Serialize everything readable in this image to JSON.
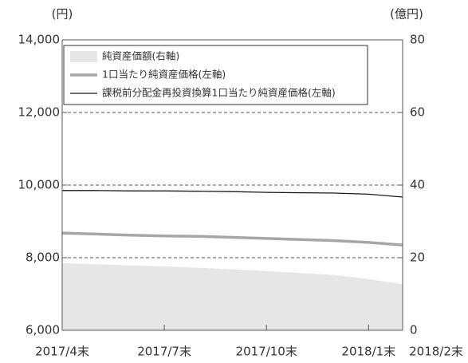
{
  "chart_data": {
    "type": "line",
    "ylabel": "(円)",
    "y2label": "(億円)",
    "categories": [
      "2017/4末",
      null,
      null,
      "2017/7末",
      null,
      null,
      "2017/10末",
      null,
      null,
      "2018/1末",
      "2018/2末"
    ],
    "series": [
      {
        "name": "純資産価額(右軸)",
        "type": "area",
        "axis": "y2",
        "color": "#e6e6e6",
        "values": [
          18.5,
          18.2,
          17.9,
          17.6,
          17.2,
          16.8,
          16.3,
          15.8,
          15.2,
          14.1,
          12.7
        ]
      },
      {
        "name": "1口当たり純資産価格(左軸)",
        "type": "line",
        "color": "#a6a6a6",
        "values": [
          8680,
          8650,
          8620,
          8600,
          8590,
          8560,
          8530,
          8500,
          8470,
          8420,
          8350
        ]
      },
      {
        "name": "課税前分配金再投資換算1口当たり純資産価格(左軸)",
        "type": "line",
        "color": "#1a1a1a",
        "values": [
          9850,
          9850,
          9840,
          9840,
          9830,
          9820,
          9800,
          9790,
          9780,
          9750,
          9670
        ]
      }
    ],
    "ylim": [
      6000,
      14000
    ],
    "yticks": [
      {
        "value": 6000,
        "label": "6,000"
      },
      {
        "value": 8000,
        "label": "8,000"
      },
      {
        "value": 10000,
        "label": "10,000"
      },
      {
        "value": 12000,
        "label": "12,000"
      },
      {
        "value": 14000,
        "label": "14,000"
      }
    ],
    "y2lim": [
      0,
      80
    ],
    "y2ticks": [
      0,
      20,
      40,
      60,
      80
    ],
    "grid": true,
    "legend": "upper left"
  }
}
